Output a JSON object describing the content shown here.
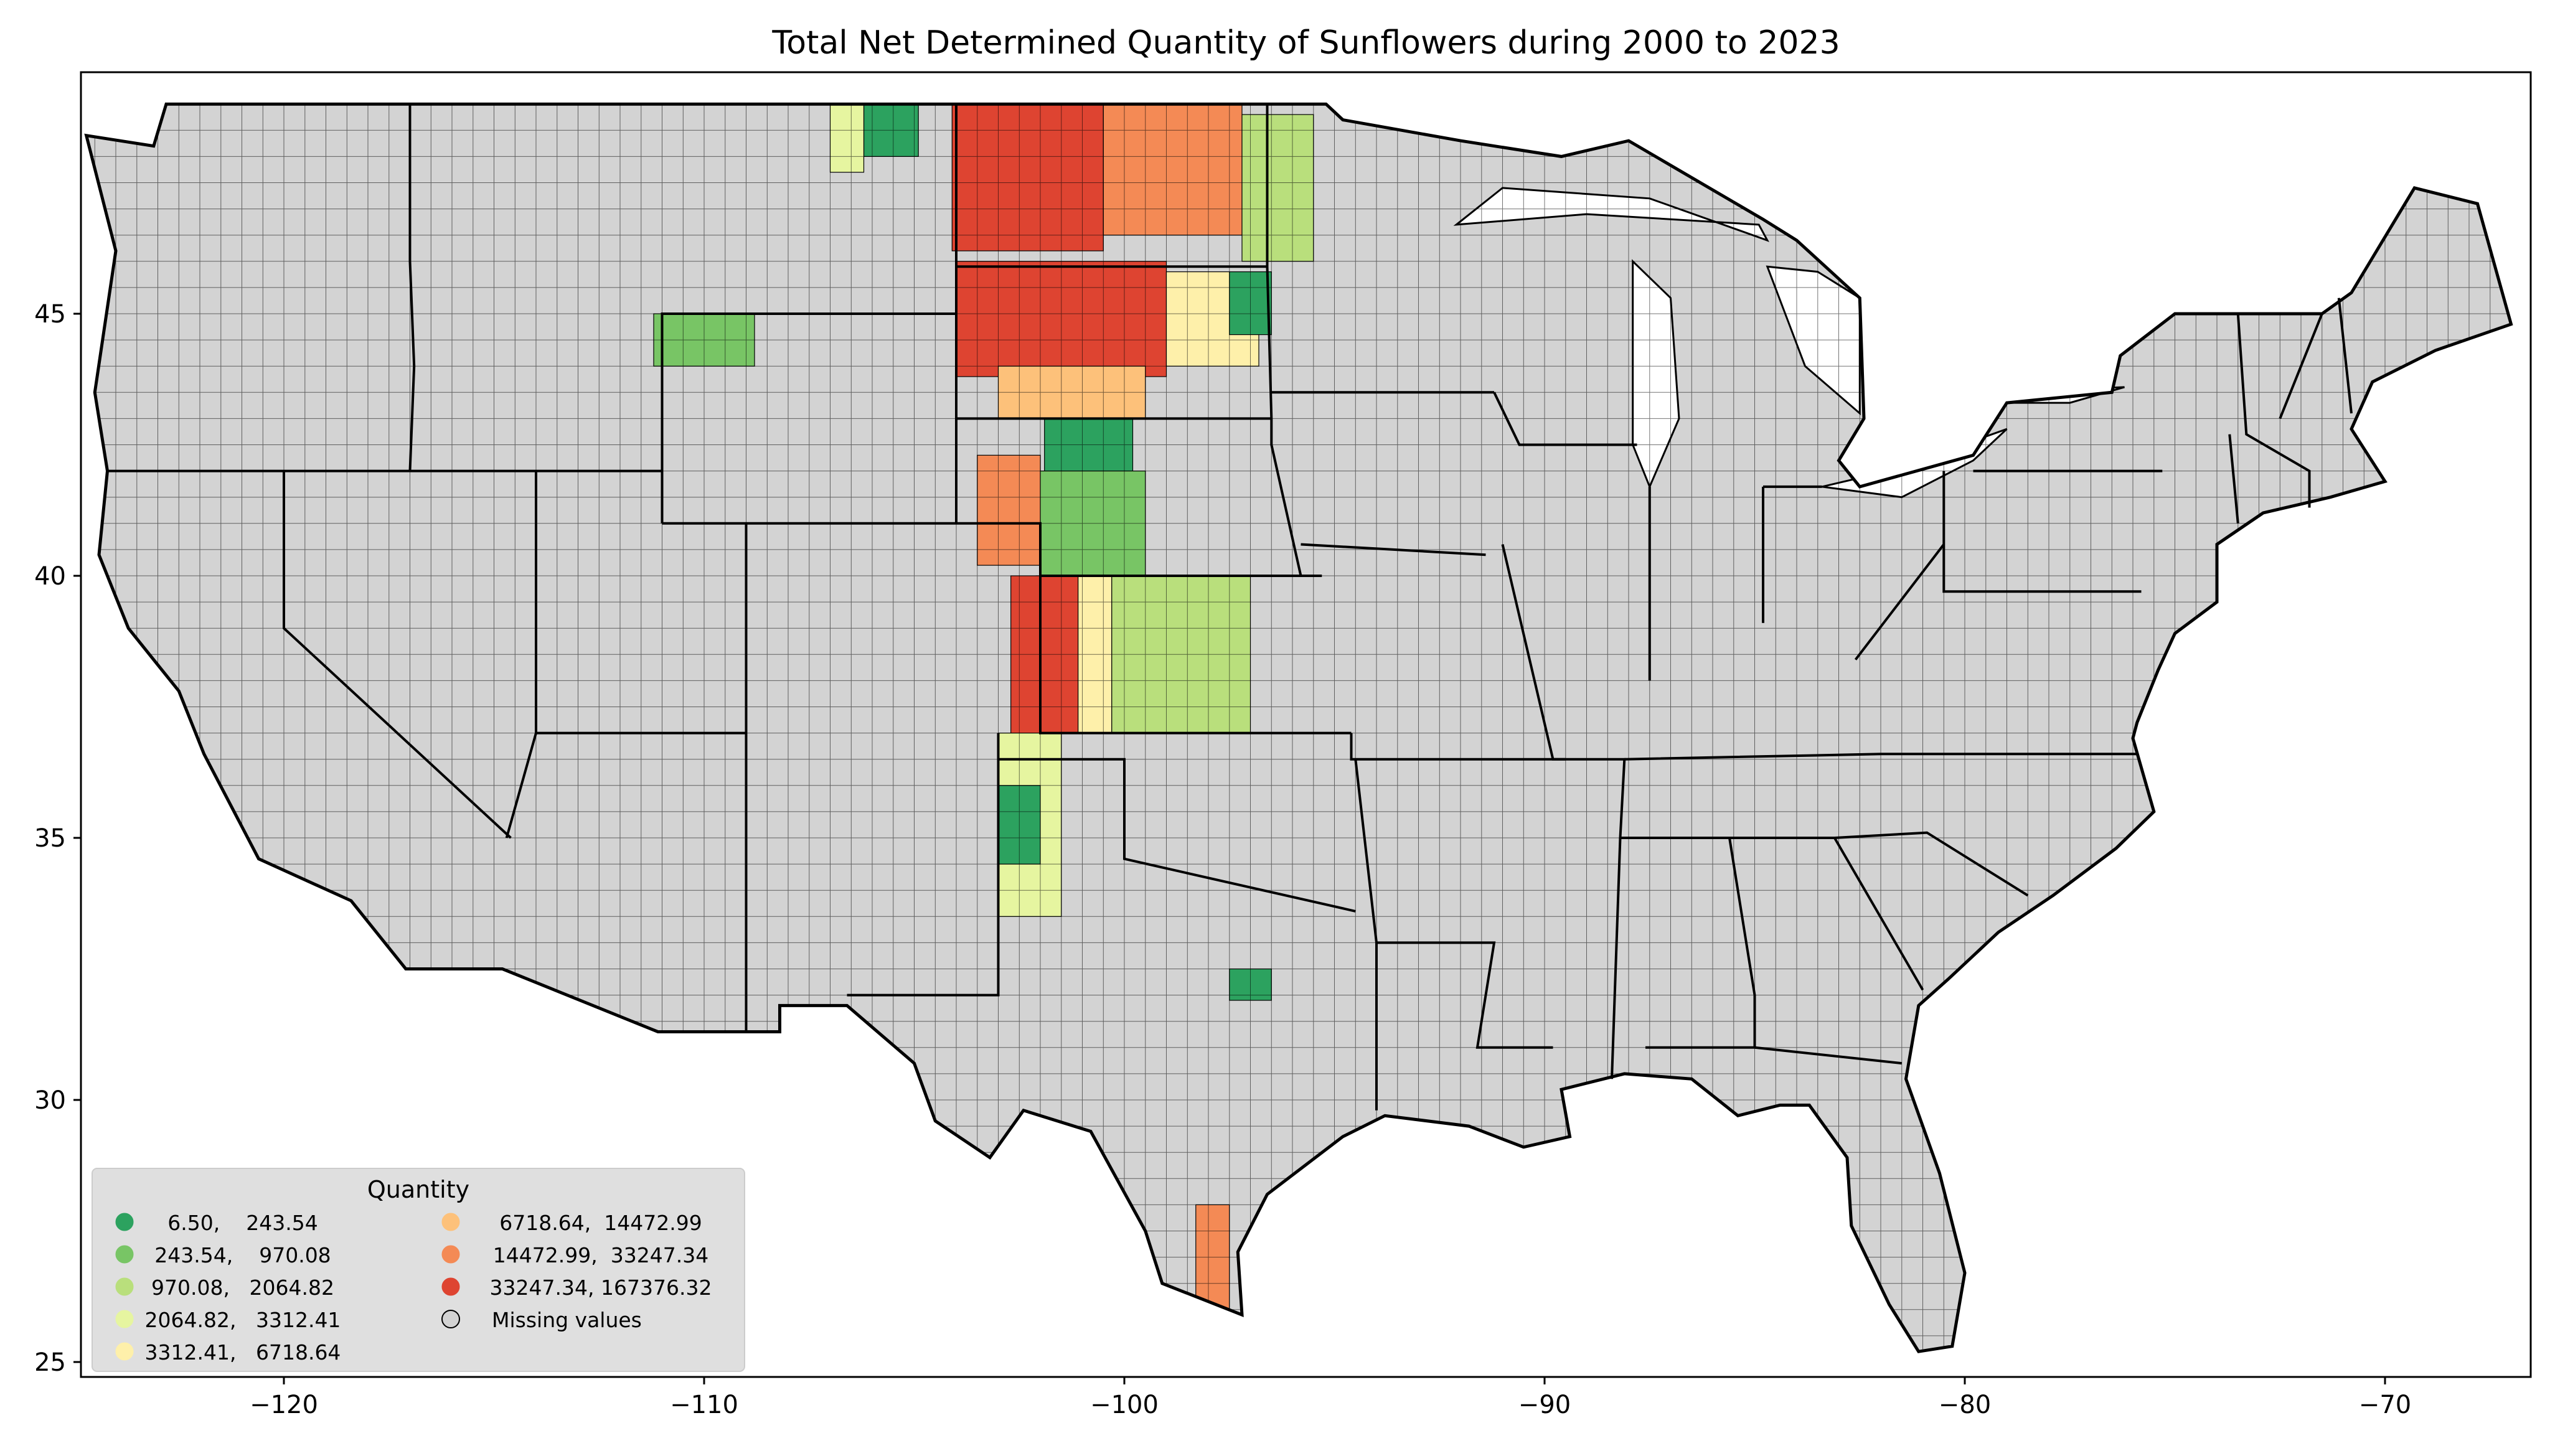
{
  "title": "Total Net Determined Quantity of Sunflowers during 2000 to 2023",
  "axes": {
    "x_ticks": [
      -120,
      -110,
      -100,
      -90,
      -80,
      -70
    ],
    "y_ticks": [
      25,
      30,
      35,
      40,
      45
    ],
    "x_tick_labels": [
      "−120",
      "−110",
      "−100",
      "−90",
      "−80",
      "−70"
    ],
    "y_tick_labels": [
      "25",
      "30",
      "35",
      "40",
      "45"
    ],
    "xlim": [
      -124.8,
      -66.5
    ],
    "ylim": [
      24.5,
      49.4
    ]
  },
  "legend": {
    "title": "Quantity",
    "placement": "lower-left",
    "entries": [
      {
        "label": "6.50,    243.54",
        "color": "#2ca25f"
      },
      {
        "label": "243.54,    970.08",
        "color": "#78c565"
      },
      {
        "label": "970.08,   2064.82",
        "color": "#b9df7c"
      },
      {
        "label": "2064.82,   3312.41",
        "color": "#e6f5a0"
      },
      {
        "label": "3312.41,   6718.64",
        "color": "#fef0aa"
      },
      {
        "label": "6718.64,  14472.99",
        "color": "#fdc17a"
      },
      {
        "label": "14472.99,  33247.34",
        "color": "#f48a55"
      },
      {
        "label": "33247.34, 167376.32",
        "color": "#de4431"
      },
      {
        "label": "Missing values",
        "color": "#d3d3d3"
      }
    ]
  },
  "colors": {
    "missing": "#d3d3d3",
    "background": "#ffffff",
    "border": "#000000"
  },
  "chart_data": {
    "type": "heatmap",
    "title": "Total Net Determined Quantity of Sunflowers during 2000 to 2023",
    "xlabel": "",
    "ylabel": "",
    "xlim": [
      -124.8,
      -66.5
    ],
    "ylim": [
      24.5,
      49.4
    ],
    "classes": [
      {
        "min": 6.5,
        "max": 243.54
      },
      {
        "min": 243.54,
        "max": 970.08
      },
      {
        "min": 970.08,
        "max": 2064.82
      },
      {
        "min": 2064.82,
        "max": 3312.41
      },
      {
        "min": 3312.41,
        "max": 6718.64
      },
      {
        "min": 6718.64,
        "max": 14472.99
      },
      {
        "min": 14472.99,
        "max": 33247.34
      },
      {
        "min": 33247.34,
        "max": 167376.32
      }
    ],
    "regions": [
      {
        "lon": [
          -104.1,
          -100.5
        ],
        "lat": [
          46.2,
          49.0
        ],
        "class": 7
      },
      {
        "lon": [
          -100.5,
          -97.2
        ],
        "lat": [
          46.5,
          49.0
        ],
        "class": 6
      },
      {
        "lon": [
          -97.2,
          -95.5
        ],
        "lat": [
          46.0,
          48.8
        ],
        "class": 2
      },
      {
        "lon": [
          -104.0,
          -99.0
        ],
        "lat": [
          43.8,
          46.0
        ],
        "class": 7
      },
      {
        "lon": [
          -99.0,
          -96.8
        ],
        "lat": [
          44.0,
          45.8
        ],
        "class": 4
      },
      {
        "lon": [
          -97.5,
          -96.5
        ],
        "lat": [
          44.6,
          45.8
        ],
        "class": 0
      },
      {
        "lon": [
          -103.0,
          -99.5
        ],
        "lat": [
          43.0,
          44.0
        ],
        "class": 5
      },
      {
        "lon": [
          -101.9,
          -99.8
        ],
        "lat": [
          42.0,
          43.0
        ],
        "class": 0
      },
      {
        "lon": [
          -103.5,
          -102.0
        ],
        "lat": [
          40.2,
          42.3
        ],
        "class": 6
      },
      {
        "lon": [
          -102.0,
          -99.5
        ],
        "lat": [
          40.0,
          42.0
        ],
        "class": 1
      },
      {
        "lon": [
          -102.1,
          -100.3
        ],
        "lat": [
          37.0,
          40.0
        ],
        "class": 4
      },
      {
        "lon": [
          -100.3,
          -97.0
        ],
        "lat": [
          37.0,
          40.0
        ],
        "class": 2
      },
      {
        "lon": [
          -102.7,
          -101.1
        ],
        "lat": [
          37.0,
          40.0
        ],
        "class": 7
      },
      {
        "lon": [
          -103.0,
          -101.5
        ],
        "lat": [
          33.5,
          37.0
        ],
        "class": 3
      },
      {
        "lon": [
          -103.0,
          -102.0
        ],
        "lat": [
          34.5,
          36.0
        ],
        "class": 0
      },
      {
        "lon": [
          -111.2,
          -108.8
        ],
        "lat": [
          44.0,
          45.0
        ],
        "class": 1
      },
      {
        "lon": [
          -106.2,
          -104.9
        ],
        "lat": [
          48.0,
          49.0
        ],
        "class": 0
      },
      {
        "lon": [
          -107.0,
          -106.2
        ],
        "lat": [
          47.7,
          49.0
        ],
        "class": 3
      },
      {
        "lon": [
          -98.3,
          -97.5
        ],
        "lat": [
          25.9,
          28.0
        ],
        "class": 6
      },
      {
        "lon": [
          -97.5,
          -96.5
        ],
        "lat": [
          31.9,
          32.5
        ],
        "class": 0
      }
    ]
  }
}
